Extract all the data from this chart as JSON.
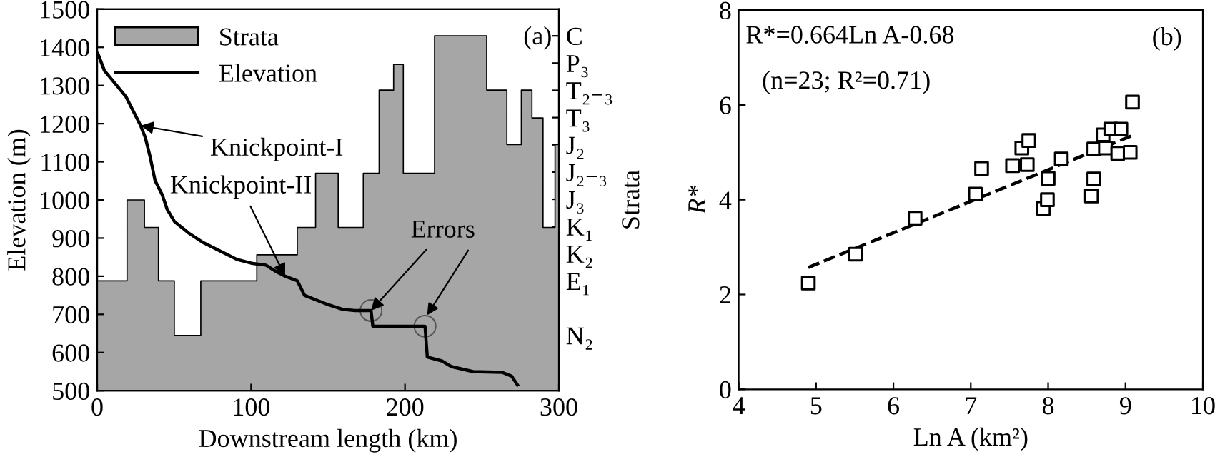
{
  "chart_data": [
    {
      "type": "line",
      "xlabel": "Downstream length (km)",
      "ylabel": "Elevation (m)",
      "y2label": "Strata",
      "xlim": [
        0,
        300
      ],
      "xticks": [
        0,
        100,
        200,
        300
      ],
      "ylim": [
        500,
        1500
      ],
      "yticks": [
        500,
        600,
        700,
        800,
        900,
        1000,
        1100,
        1200,
        1300,
        1400,
        1500
      ],
      "y2_categories": [
        "C",
        "P₃",
        "T₂₋₃",
        "T₃",
        "J₂",
        "J₂₋₃",
        "J₃",
        "K₁",
        "K₂",
        "E₁",
        null,
        "N₂"
      ],
      "legend": "top left",
      "grid": false,
      "series": [
        {
          "name": "Strata",
          "type": "area",
          "color": "#a6a6a6",
          "x": [
            0,
            19.4,
            19.4,
            30.7,
            30.7,
            39.8,
            39.8,
            50.1,
            50.1,
            67.3,
            67.3,
            103.7,
            103.7,
            130,
            130,
            141.9,
            141.9,
            156.6,
            156.6,
            172.9,
            172.9,
            183.2,
            183.2,
            192.6,
            192.6,
            198.9,
            198.9,
            219.2,
            219.2,
            253.1,
            253.1,
            266.2,
            266.2,
            275.6,
            275.6,
            282.5,
            282.5,
            289.7,
            289.7,
            297.5,
            297.5,
            300
          ],
          "values": [
            788,
            788,
            1000,
            1000,
            928,
            928,
            788,
            788,
            645,
            645,
            788,
            788,
            856,
            856,
            928,
            928,
            1070,
            1070,
            928,
            928,
            1070,
            1070,
            1288,
            1288,
            1355,
            1355,
            1070,
            1070,
            1430,
            1430,
            1288,
            1288,
            1145,
            1145,
            1288,
            1288,
            1215,
            1215,
            928,
            928,
            1145,
            1145
          ]
        },
        {
          "name": "Elevation",
          "type": "line",
          "color": "#000000",
          "x": [
            0,
            0.6,
            4.7,
            12.5,
            18.8,
            21.9,
            28.2,
            31.3,
            34.4,
            37.6,
            42.3,
            45.4,
            50.1,
            59.5,
            68.9,
            81.4,
            90.8,
            100.2,
            109.6,
            115.9,
            122.1,
            130,
            134.7,
            140.9,
            150.3,
            159.7,
            167.5,
            177.9,
            179.1,
            203.6,
            213,
            214.5,
            223.9,
            230.2,
            244.3,
            263.1,
            269.3,
            273.1
          ],
          "values": [
            1385,
            1382,
            1339,
            1301,
            1270,
            1245,
            1195,
            1163,
            1113,
            1051,
            1013,
            976,
            944,
            913,
            888,
            863,
            844,
            834,
            829,
            813,
            800,
            788,
            750,
            740,
            725,
            713,
            710,
            710,
            669,
            669,
            669,
            588,
            578,
            563,
            550,
            548,
            538,
            515
          ]
        }
      ],
      "annotations": [
        "(a)",
        {
          "text": "Knickpoint-I",
          "x": 28.2,
          "y": 1195
        },
        {
          "text": "Knickpoint-II",
          "x": 122.1,
          "y": 800
        },
        {
          "text": "Errors",
          "x": 177.9,
          "y": 710
        }
      ]
    },
    {
      "type": "scatter",
      "xlabel": "Ln A (km²)",
      "ylabel": "R*",
      "xlim": [
        4,
        10
      ],
      "xticks": [
        4,
        5,
        6,
        7,
        8,
        9,
        10
      ],
      "ylim": [
        0,
        8
      ],
      "yticks": [
        0,
        2,
        4,
        6,
        8
      ],
      "grid": false,
      "legend": false,
      "series": [
        {
          "type": "scatter",
          "marker": "square",
          "color": "#000000",
          "x": [
            4.9,
            5.51,
            6.28,
            7.06,
            7.14,
            7.54,
            7.66,
            7.73,
            7.75,
            7.94,
            7.99,
            8.0,
            8.17,
            8.56,
            8.59,
            8.59,
            8.71,
            8.74,
            8.81,
            8.9,
            8.94,
            9.06,
            9.09
          ],
          "values": [
            2.24,
            2.85,
            3.61,
            4.12,
            4.66,
            4.72,
            5.09,
            4.74,
            5.25,
            3.82,
            4.0,
            4.45,
            4.86,
            4.08,
            5.07,
            4.44,
            5.37,
            5.09,
            5.49,
            4.98,
            5.49,
            5.0,
            6.06
          ]
        },
        {
          "type": "line",
          "line_style": "dashed",
          "color": "#000000",
          "x": [
            4.9,
            9.08
          ],
          "values": [
            2.57,
            5.35
          ]
        }
      ],
      "annotations": [
        "R*=0.664Ln A-0.68",
        "(n=23; R²=0.71)",
        "(b)"
      ]
    }
  ]
}
